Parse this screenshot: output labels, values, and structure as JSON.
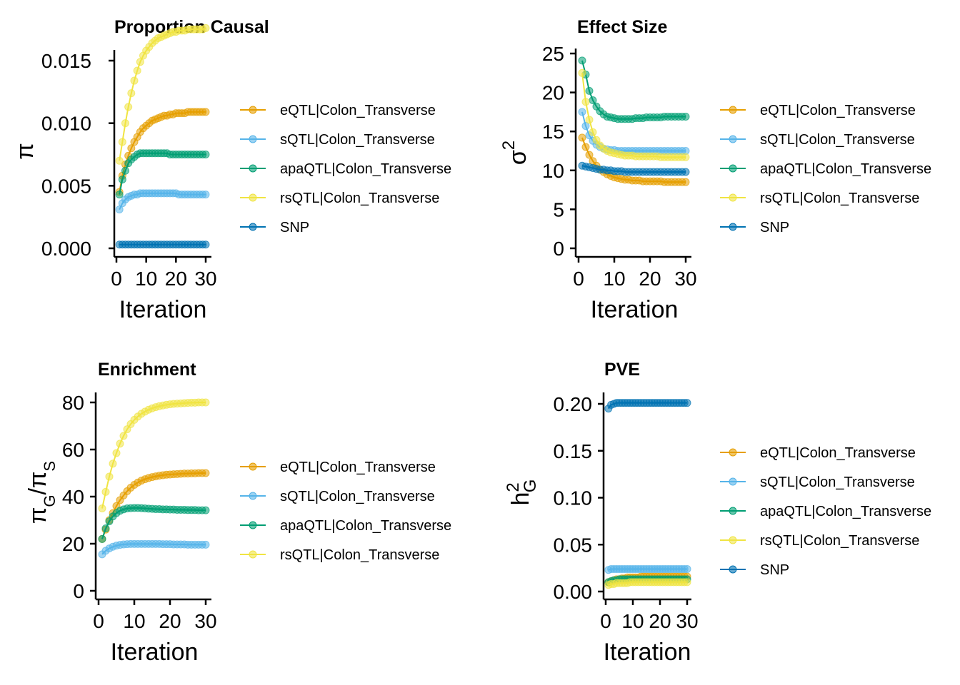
{
  "colors": {
    "eQTL": "#E69F00",
    "sQTL": "#56B4E9",
    "apaQTL": "#009E73",
    "rsQTL": "#F0E442",
    "SNP": "#0072B2"
  },
  "chart_data": [
    {
      "id": "proportion-causal",
      "type": "line",
      "title": "Proportion Causal",
      "xlabel": "Iteration",
      "ylabel_text": "π",
      "xlim": [
        0,
        30
      ],
      "ylim": [
        -0.0004,
        0.0185
      ],
      "xticks": [
        0,
        10,
        20,
        30
      ],
      "yticks": [
        0.0,
        0.005,
        0.01,
        0.015
      ],
      "ytick_labels": [
        "0.000",
        "0.005",
        "0.010",
        "0.015"
      ],
      "x": [
        1,
        2,
        3,
        4,
        5,
        6,
        7,
        8,
        9,
        10,
        11,
        12,
        13,
        14,
        15,
        16,
        17,
        18,
        19,
        20,
        21,
        22,
        23,
        24,
        25,
        26,
        27,
        28,
        29,
        30
      ],
      "legend": [
        "eQTL|Colon_Transverse",
        "sQTL|Colon_Transverse",
        "apaQTL|Colon_Transverse",
        "rsQTL|Colon_Transverse",
        "SNP"
      ],
      "series": [
        {
          "name": "eQTL|Colon_Transverse",
          "color_key": "eQTL",
          "values": [
            0.0045,
            0.0058,
            0.0067,
            0.0074,
            0.008,
            0.0085,
            0.0089,
            0.0093,
            0.0096,
            0.0098,
            0.01,
            0.0102,
            0.0103,
            0.0104,
            0.0105,
            0.0106,
            0.0106,
            0.0107,
            0.0107,
            0.0108,
            0.0108,
            0.0108,
            0.0108,
            0.0109,
            0.0109,
            0.0109,
            0.0109,
            0.0109,
            0.0109,
            0.0109
          ]
        },
        {
          "name": "sQTL|Colon_Transverse",
          "color_key": "sQTL",
          "values": [
            0.0031,
            0.0036,
            0.0039,
            0.0041,
            0.0042,
            0.0043,
            0.0043,
            0.0044,
            0.0044,
            0.0044,
            0.0044,
            0.0044,
            0.0044,
            0.0044,
            0.0044,
            0.0044,
            0.0044,
            0.0044,
            0.0044,
            0.0044,
            0.0043,
            0.0043,
            0.0043,
            0.0043,
            0.0043,
            0.0043,
            0.0043,
            0.0043,
            0.0043,
            0.0043
          ]
        },
        {
          "name": "apaQTL|Colon_Transverse",
          "color_key": "apaQTL",
          "values": [
            0.0043,
            0.0055,
            0.0062,
            0.0068,
            0.0071,
            0.0073,
            0.0075,
            0.0076,
            0.0076,
            0.0076,
            0.0076,
            0.0076,
            0.0076,
            0.0076,
            0.0076,
            0.0076,
            0.0076,
            0.0075,
            0.0075,
            0.0075,
            0.0075,
            0.0075,
            0.0075,
            0.0075,
            0.0075,
            0.0075,
            0.0075,
            0.0075,
            0.0075,
            0.0075
          ]
        },
        {
          "name": "rsQTL|Colon_Transverse",
          "color_key": "rsQTL",
          "values": [
            0.007,
            0.0085,
            0.01,
            0.0113,
            0.0124,
            0.0134,
            0.0142,
            0.0149,
            0.0154,
            0.0158,
            0.0161,
            0.0164,
            0.0166,
            0.0168,
            0.0169,
            0.017,
            0.0171,
            0.0172,
            0.0173,
            0.0173,
            0.0174,
            0.0174,
            0.0174,
            0.0175,
            0.0175,
            0.0175,
            0.0175,
            0.0175,
            0.0175,
            0.0176
          ]
        },
        {
          "name": "SNP",
          "color_key": "SNP",
          "values": [
            0.0003,
            0.0003,
            0.0003,
            0.0003,
            0.0003,
            0.0003,
            0.0003,
            0.0003,
            0.0003,
            0.0003,
            0.0003,
            0.0003,
            0.0003,
            0.0003,
            0.0003,
            0.0003,
            0.0003,
            0.0003,
            0.0003,
            0.0003,
            0.0003,
            0.0003,
            0.0003,
            0.0003,
            0.0003,
            0.0003,
            0.0003,
            0.0003,
            0.0003,
            0.0003
          ]
        }
      ]
    },
    {
      "id": "effect-size",
      "type": "line",
      "title": "Effect Size",
      "xlabel": "Iteration",
      "ylabel_text": "σ",
      "ylabel_sup": "2",
      "xlim": [
        0,
        30
      ],
      "ylim": [
        -1,
        25.5
      ],
      "xticks": [
        0,
        10,
        20,
        30
      ],
      "yticks": [
        0,
        5,
        10,
        15,
        20,
        25
      ],
      "ytick_labels": [
        "0",
        "5",
        "10",
        "15",
        "20",
        "25"
      ],
      "x": [
        1,
        2,
        3,
        4,
        5,
        6,
        7,
        8,
        9,
        10,
        11,
        12,
        13,
        14,
        15,
        16,
        17,
        18,
        19,
        20,
        21,
        22,
        23,
        24,
        25,
        26,
        27,
        28,
        29,
        30
      ],
      "legend": [
        "eQTL|Colon_Transverse",
        "sQTL|Colon_Transverse",
        "apaQTL|Colon_Transverse",
        "rsQTL|Colon_Transverse",
        "SNP"
      ],
      "series": [
        {
          "name": "eQTL|Colon_Transverse",
          "color_key": "eQTL",
          "values": [
            14.2,
            13.0,
            12.0,
            11.2,
            10.6,
            10.1,
            9.8,
            9.5,
            9.3,
            9.1,
            9.0,
            8.9,
            8.8,
            8.8,
            8.7,
            8.7,
            8.7,
            8.6,
            8.6,
            8.6,
            8.6,
            8.6,
            8.6,
            8.5,
            8.5,
            8.5,
            8.5,
            8.5,
            8.5,
            8.5
          ]
        },
        {
          "name": "sQTL|Colon_Transverse",
          "color_key": "sQTL",
          "values": [
            17.5,
            15.7,
            14.5,
            13.8,
            13.3,
            13.0,
            12.8,
            12.7,
            12.6,
            12.6,
            12.5,
            12.5,
            12.5,
            12.5,
            12.5,
            12.5,
            12.5,
            12.5,
            12.5,
            12.5,
            12.5,
            12.5,
            12.5,
            12.5,
            12.5,
            12.5,
            12.5,
            12.5,
            12.5,
            12.5
          ]
        },
        {
          "name": "apaQTL|Colon_Transverse",
          "color_key": "apaQTL",
          "values": [
            24.1,
            22.3,
            20.2,
            19.0,
            18.2,
            17.6,
            17.2,
            16.9,
            16.8,
            16.7,
            16.6,
            16.6,
            16.6,
            16.6,
            16.6,
            16.7,
            16.7,
            16.7,
            16.8,
            16.8,
            16.8,
            16.8,
            16.8,
            16.9,
            16.9,
            16.9,
            16.9,
            16.9,
            16.9,
            16.9
          ]
        },
        {
          "name": "rsQTL|Colon_Transverse",
          "color_key": "rsQTL",
          "values": [
            22.5,
            18.8,
            16.5,
            14.9,
            13.9,
            13.2,
            12.8,
            12.5,
            12.3,
            12.2,
            12.1,
            12.0,
            11.9,
            11.9,
            11.9,
            11.8,
            11.8,
            11.8,
            11.8,
            11.8,
            11.8,
            11.8,
            11.7,
            11.7,
            11.7,
            11.7,
            11.7,
            11.7,
            11.7,
            11.7
          ]
        },
        {
          "name": "SNP",
          "color_key": "SNP",
          "values": [
            10.6,
            10.5,
            10.4,
            10.3,
            10.2,
            10.1,
            10.1,
            10.0,
            10.0,
            9.9,
            9.9,
            9.9,
            9.8,
            9.8,
            9.8,
            9.8,
            9.8,
            9.8,
            9.8,
            9.8,
            9.8,
            9.8,
            9.8,
            9.8,
            9.8,
            9.8,
            9.8,
            9.8,
            9.8,
            9.8
          ]
        }
      ]
    },
    {
      "id": "enrichment",
      "type": "line",
      "title": "Enrichment",
      "xlabel": "Iteration",
      "ylabel_text": "πG/πS",
      "ylabel_num": "π",
      "ylabel_num_sub": "G",
      "ylabel_den": "π",
      "ylabel_den_sub": "S",
      "xlim": [
        0,
        30
      ],
      "ylim": [
        -4,
        84
      ],
      "xticks": [
        0,
        10,
        20,
        30
      ],
      "yticks": [
        0,
        20,
        40,
        60,
        80
      ],
      "ytick_labels": [
        "0",
        "20",
        "40",
        "60",
        "80"
      ],
      "x": [
        1,
        2,
        3,
        4,
        5,
        6,
        7,
        8,
        9,
        10,
        11,
        12,
        13,
        14,
        15,
        16,
        17,
        18,
        19,
        20,
        21,
        22,
        23,
        24,
        25,
        26,
        27,
        28,
        29,
        30
      ],
      "legend": [
        "eQTL|Colon_Transverse",
        "sQTL|Colon_Transverse",
        "apaQTL|Colon_Transverse",
        "rsQTL|Colon_Transverse"
      ],
      "series": [
        {
          "name": "eQTL|Colon_Transverse",
          "color_key": "eQTL",
          "values": [
            22,
            26,
            30,
            33,
            36,
            38.5,
            40.5,
            42.3,
            43.8,
            45,
            46,
            46.8,
            47.4,
            47.9,
            48.3,
            48.6,
            48.9,
            49.1,
            49.3,
            49.4,
            49.5,
            49.6,
            49.7,
            49.8,
            49.8,
            49.9,
            49.9,
            50,
            50,
            50
          ]
        },
        {
          "name": "sQTL|Colon_Transverse",
          "color_key": "sQTL",
          "values": [
            15.5,
            17,
            18,
            18.7,
            19.2,
            19.5,
            19.7,
            19.8,
            19.9,
            19.9,
            19.9,
            19.9,
            19.9,
            19.9,
            19.9,
            19.9,
            19.9,
            19.8,
            19.8,
            19.8,
            19.7,
            19.7,
            19.7,
            19.7,
            19.6,
            19.6,
            19.6,
            19.6,
            19.6,
            19.6
          ]
        },
        {
          "name": "apaQTL|Colon_Transverse",
          "color_key": "apaQTL",
          "values": [
            22,
            26.5,
            29.5,
            31.6,
            33,
            34,
            34.6,
            35,
            35.1,
            35.2,
            35.2,
            35.1,
            35,
            34.9,
            34.8,
            34.7,
            34.7,
            34.6,
            34.6,
            34.5,
            34.5,
            34.4,
            34.4,
            34.4,
            34.3,
            34.3,
            34.3,
            34.2,
            34.2,
            34.2
          ]
        },
        {
          "name": "rsQTL|Colon_Transverse",
          "color_key": "rsQTL",
          "values": [
            35,
            42,
            48.5,
            54,
            58.5,
            62.5,
            65.8,
            68.6,
            70.8,
            72.6,
            74,
            75.2,
            76.1,
            76.9,
            77.5,
            78,
            78.4,
            78.7,
            79,
            79.2,
            79.4,
            79.5,
            79.6,
            79.7,
            79.8,
            79.9,
            79.9,
            80,
            80,
            80
          ]
        }
      ]
    },
    {
      "id": "pve",
      "type": "line",
      "title": "PVE",
      "xlabel": "Iteration",
      "ylabel_text": "h",
      "ylabel_sup": "2",
      "ylabel_sub": "G",
      "xlim": [
        0,
        30
      ],
      "ylim": [
        -0.01,
        0.212
      ],
      "xticks": [
        0,
        10,
        20,
        30
      ],
      "xtick_labels": [
        "0",
        "10",
        "20",
        "30"
      ],
      "yticks": [
        0.0,
        0.05,
        0.1,
        0.15,
        0.2
      ],
      "ytick_labels": [
        "0.00",
        "0.05",
        "0.10",
        "0.15",
        "0.20"
      ],
      "x": [
        1,
        2,
        3,
        4,
        5,
        6,
        7,
        8,
        9,
        10,
        11,
        12,
        13,
        14,
        15,
        16,
        17,
        18,
        19,
        20,
        21,
        22,
        23,
        24,
        25,
        26,
        27,
        28,
        29,
        30
      ],
      "legend": [
        "eQTL|Colon_Transverse",
        "sQTL|Colon_Transverse",
        "apaQTL|Colon_Transverse",
        "rsQTL|Colon_Transverse",
        "SNP"
      ],
      "series": [
        {
          "name": "eQTL|Colon_Transverse",
          "color_key": "eQTL",
          "values": [
            0.01,
            0.011,
            0.012,
            0.013,
            0.013,
            0.014,
            0.014,
            0.015,
            0.015,
            0.015,
            0.015,
            0.015,
            0.016,
            0.016,
            0.016,
            0.016,
            0.016,
            0.016,
            0.016,
            0.016,
            0.016,
            0.016,
            0.016,
            0.016,
            0.016,
            0.016,
            0.016,
            0.016,
            0.016,
            0.016
          ]
        },
        {
          "name": "sQTL|Colon_Transverse",
          "color_key": "sQTL",
          "values": [
            0.023,
            0.024,
            0.024,
            0.024,
            0.024,
            0.024,
            0.024,
            0.024,
            0.024,
            0.024,
            0.024,
            0.024,
            0.024,
            0.024,
            0.024,
            0.024,
            0.024,
            0.024,
            0.024,
            0.024,
            0.024,
            0.024,
            0.024,
            0.024,
            0.024,
            0.024,
            0.024,
            0.024,
            0.024,
            0.024
          ]
        },
        {
          "name": "apaQTL|Colon_Transverse",
          "color_key": "apaQTL",
          "values": [
            0.01,
            0.011,
            0.012,
            0.012,
            0.013,
            0.013,
            0.013,
            0.013,
            0.013,
            0.013,
            0.013,
            0.013,
            0.013,
            0.013,
            0.013,
            0.013,
            0.013,
            0.013,
            0.013,
            0.013,
            0.013,
            0.013,
            0.013,
            0.013,
            0.013,
            0.013,
            0.013,
            0.013,
            0.013,
            0.013
          ]
        },
        {
          "name": "rsQTL|Colon_Transverse",
          "color_key": "rsQTL",
          "values": [
            0.007,
            0.008,
            0.008,
            0.009,
            0.009,
            0.009,
            0.009,
            0.009,
            0.01,
            0.01,
            0.01,
            0.01,
            0.01,
            0.01,
            0.01,
            0.01,
            0.01,
            0.01,
            0.01,
            0.01,
            0.01,
            0.01,
            0.01,
            0.01,
            0.01,
            0.01,
            0.01,
            0.01,
            0.01,
            0.01
          ]
        },
        {
          "name": "SNP",
          "color_key": "SNP",
          "values": [
            0.195,
            0.199,
            0.2,
            0.201,
            0.201,
            0.201,
            0.201,
            0.201,
            0.201,
            0.201,
            0.201,
            0.201,
            0.201,
            0.201,
            0.201,
            0.201,
            0.201,
            0.201,
            0.201,
            0.201,
            0.201,
            0.201,
            0.201,
            0.201,
            0.201,
            0.201,
            0.201,
            0.201,
            0.201,
            0.201
          ]
        }
      ]
    }
  ]
}
